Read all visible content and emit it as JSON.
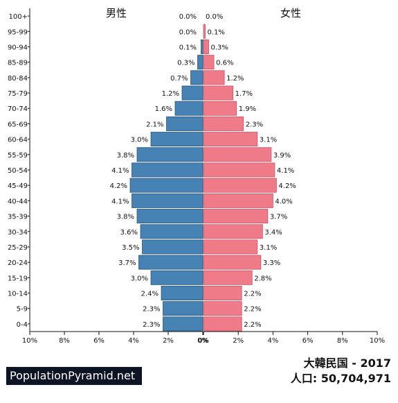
{
  "chart_data": {
    "type": "bar",
    "orientation": "horizontal-pyramid",
    "categories": [
      "0-4",
      "5-9",
      "10-14",
      "15-19",
      "20-24",
      "25-29",
      "30-34",
      "35-39",
      "40-44",
      "45-49",
      "50-54",
      "55-59",
      "60-64",
      "65-69",
      "70-74",
      "75-79",
      "80-84",
      "85-89",
      "90-94",
      "95-99",
      "100+"
    ],
    "series": [
      {
        "name": "男性",
        "color": "#4682b4",
        "values": [
          2.3,
          2.3,
          2.4,
          3.0,
          3.7,
          3.5,
          3.6,
          3.8,
          4.1,
          4.2,
          4.1,
          3.8,
          3.0,
          2.1,
          1.6,
          1.2,
          0.7,
          0.3,
          0.1,
          0.0,
          0.0
        ],
        "labels": [
          "2.3%",
          "2.3%",
          "2.4%",
          "3.0%",
          "3.7%",
          "3.5%",
          "3.6%",
          "3.8%",
          "4.1%",
          "4.2%",
          "4.1%",
          "3.8%",
          "3.0%",
          "2.1%",
          "1.6%",
          "1.2%",
          "0.7%",
          "0.3%",
          "0.1%",
          "0.0%",
          "0.0%"
        ]
      },
      {
        "name": "女性",
        "color": "#ef7b89",
        "values": [
          2.2,
          2.2,
          2.2,
          2.8,
          3.3,
          3.1,
          3.4,
          3.7,
          4.0,
          4.2,
          4.1,
          3.9,
          3.1,
          2.3,
          1.9,
          1.7,
          1.2,
          0.6,
          0.3,
          0.1,
          0.0
        ],
        "labels": [
          "2.2%",
          "2.2%",
          "2.2%",
          "2.8%",
          "3.3%",
          "3.1%",
          "3.4%",
          "3.7%",
          "4.0%",
          "4.2%",
          "4.1%",
          "3.9%",
          "3.1%",
          "2.3%",
          "1.9%",
          "1.7%",
          "1.2%",
          "0.6%",
          "0.3%",
          "0.1%",
          "0.0%"
        ]
      }
    ],
    "xlim": [
      0,
      10
    ],
    "x_ticks_left": [
      "10%",
      "8%",
      "6%",
      "4%",
      "2%",
      "0%"
    ],
    "x_ticks_right": [
      "0%",
      "2%",
      "4%",
      "6%",
      "8%",
      "10%"
    ],
    "grid": false,
    "title": "大韓民国 - 2017",
    "population_label": "人口: 50,704,971"
  },
  "brand": "PopulationPyramid.net"
}
